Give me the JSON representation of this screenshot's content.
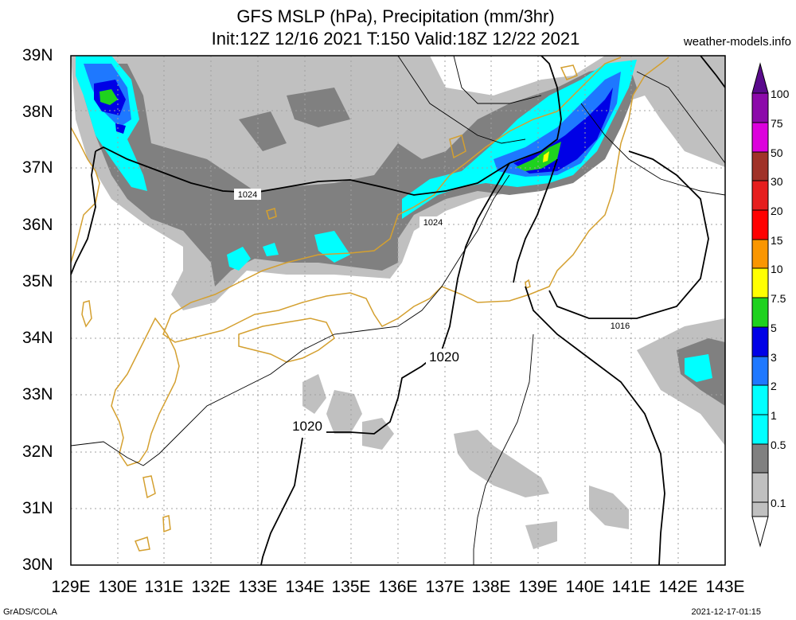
{
  "header": {
    "title_line1": "GFS MSLP (hPa), Precipitation (mm/3hr)",
    "title_line2": "Init:12Z 12/16 2021 T:150 Valid:18Z 12/22 2021",
    "site": "weather-models.info"
  },
  "axes": {
    "lat_labels": [
      "39N",
      "38N",
      "37N",
      "36N",
      "35N",
      "34N",
      "33N",
      "32N",
      "31N",
      "30N"
    ],
    "lon_labels": [
      "129E",
      "130E",
      "131E",
      "132E",
      "133E",
      "134E",
      "135E",
      "136E",
      "137E",
      "138E",
      "139E",
      "140E",
      "141E",
      "142E",
      "143E"
    ]
  },
  "contours": {
    "labels": [
      "1024",
      "1024",
      "1020",
      "1020",
      "1016"
    ]
  },
  "legend": {
    "levels": [
      "100",
      "75",
      "50",
      "30",
      "20",
      "15",
      "10",
      "7.5",
      "5",
      "3",
      "2",
      "1",
      "0.5",
      "0.1"
    ],
    "colors": {
      "100": "#5a0a8c",
      "75": "#8c0aaa",
      "50": "#dc00dc",
      "30": "#a03228",
      "20": "#e61e1e",
      "15": "#ff0000",
      "10": "#fa9600",
      "7.5": "#ffff00",
      "5": "#1ed21e",
      "3": "#0000e6",
      "2": "#1e78ff",
      "1": "#00ffff",
      "0.5": "#808080",
      "0.1": "#c0c0c0"
    }
  },
  "footer": {
    "left": "GrADS/COLA",
    "right": "2021-12-17-01:15"
  }
}
